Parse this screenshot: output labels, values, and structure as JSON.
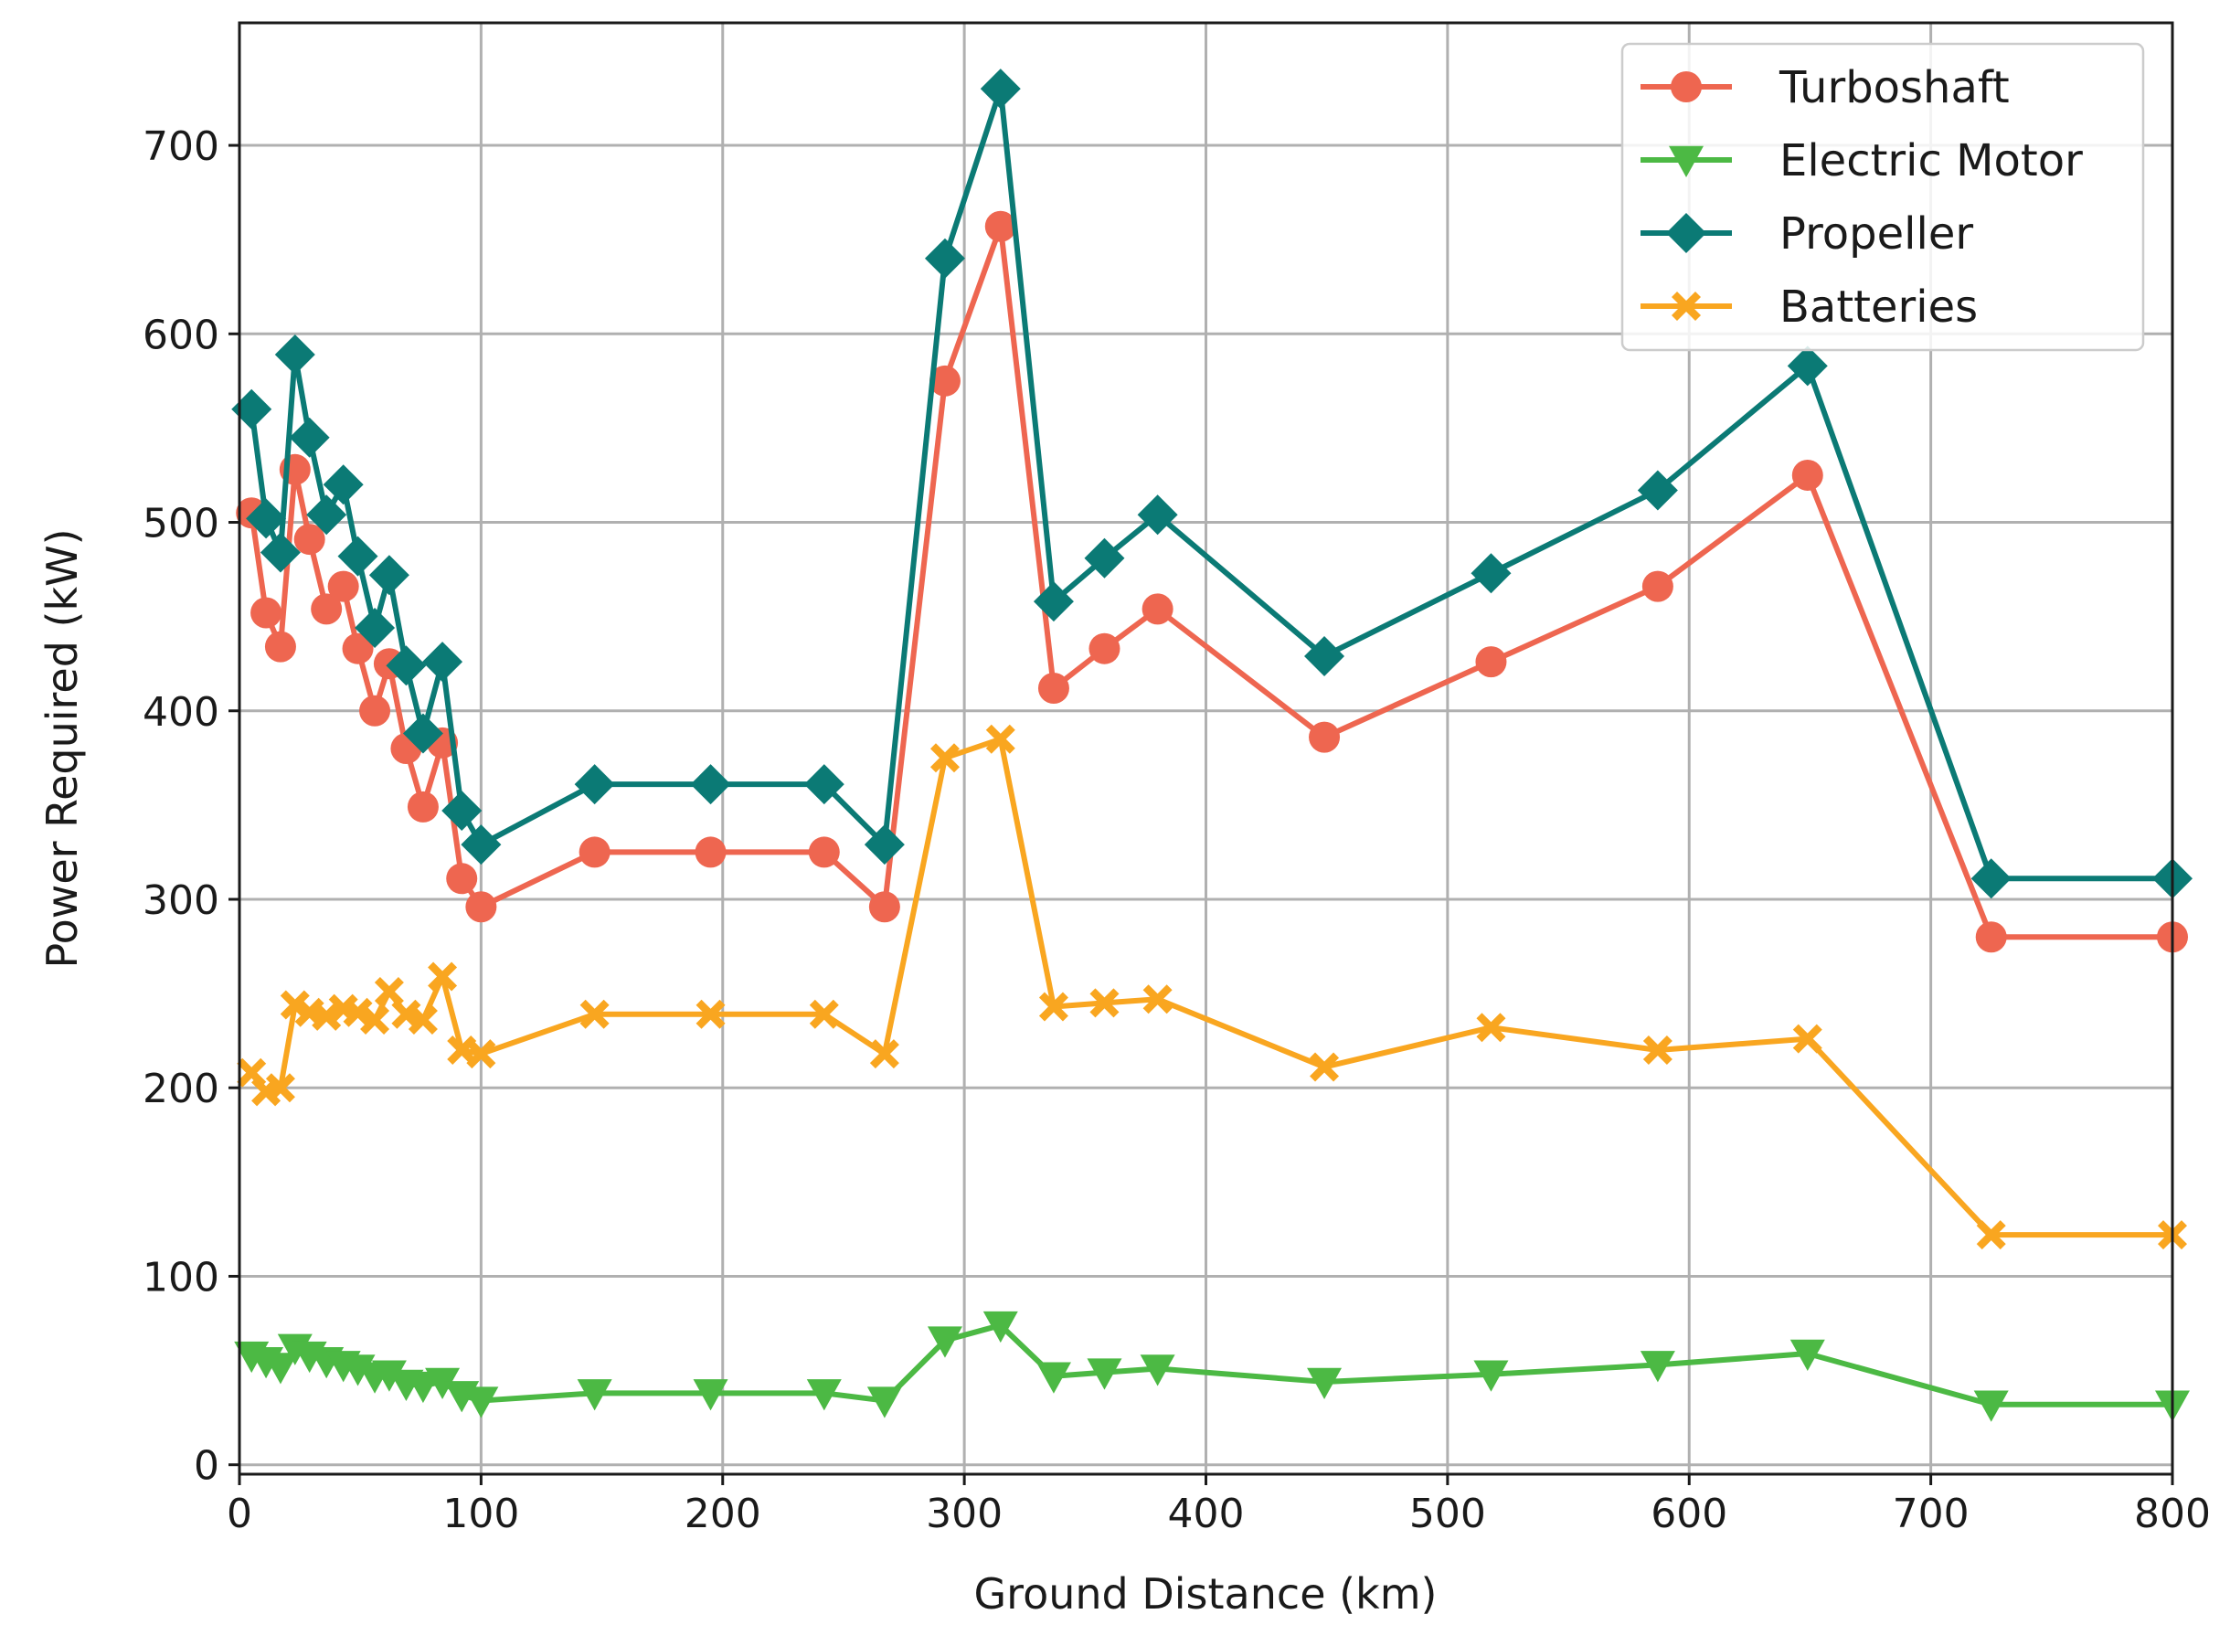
{
  "chart_data": {
    "type": "line",
    "title": "",
    "xlabel": "Ground Distance (km)",
    "ylabel": "Power Required (kW)",
    "xlim": [
      0,
      800
    ],
    "ylim": [
      -5,
      765
    ],
    "xticks": [
      0,
      100,
      200,
      300,
      400,
      500,
      600,
      700,
      800
    ],
    "yticks": [
      0,
      100,
      200,
      300,
      400,
      500,
      600,
      700
    ],
    "grid": true,
    "legend_position": "top-right",
    "series": [
      {
        "name": "Turboshaft",
        "color": "#EE6650",
        "marker": "circle",
        "points": [
          [
            5,
            505
          ],
          [
            11,
            452
          ],
          [
            17,
            434
          ],
          [
            23,
            528
          ],
          [
            29,
            491
          ],
          [
            36,
            454
          ],
          [
            43,
            466
          ],
          [
            49,
            433
          ],
          [
            56,
            400
          ],
          [
            62,
            425
          ],
          [
            69,
            380
          ],
          [
            76,
            349
          ],
          [
            84,
            383
          ],
          [
            92,
            311
          ],
          [
            100,
            296
          ],
          [
            147,
            325
          ],
          [
            195,
            325
          ],
          [
            242,
            325
          ],
          [
            267,
            296
          ],
          [
            292,
            575
          ],
          [
            315,
            657
          ],
          [
            337,
            412
          ],
          [
            358,
            433
          ],
          [
            380,
            454
          ],
          [
            449,
            386
          ],
          [
            518,
            426
          ],
          [
            587,
            466
          ],
          [
            649,
            525
          ],
          [
            725,
            280
          ],
          [
            800,
            280
          ]
        ]
      },
      {
        "name": "Electric Motor",
        "color": "#4CB944",
        "marker": "triangle-down",
        "points": [
          [
            5,
            58
          ],
          [
            11,
            55
          ],
          [
            17,
            52
          ],
          [
            23,
            62
          ],
          [
            29,
            58
          ],
          [
            36,
            55
          ],
          [
            43,
            53
          ],
          [
            49,
            51
          ],
          [
            56,
            47
          ],
          [
            62,
            48
          ],
          [
            69,
            43
          ],
          [
            76,
            42
          ],
          [
            84,
            44
          ],
          [
            92,
            37
          ],
          [
            100,
            34
          ],
          [
            147,
            38
          ],
          [
            195,
            38
          ],
          [
            242,
            38
          ],
          [
            267,
            34
          ],
          [
            292,
            66
          ],
          [
            315,
            74
          ],
          [
            337,
            47
          ],
          [
            358,
            49
          ],
          [
            380,
            51
          ],
          [
            449,
            44
          ],
          [
            518,
            48
          ],
          [
            587,
            53
          ],
          [
            649,
            59
          ],
          [
            725,
            32
          ],
          [
            800,
            32
          ]
        ]
      },
      {
        "name": "Propeller",
        "color": "#0B7A75",
        "marker": "diamond",
        "points": [
          [
            5,
            560
          ],
          [
            11,
            502
          ],
          [
            17,
            484
          ],
          [
            23,
            589
          ],
          [
            29,
            545
          ],
          [
            36,
            504
          ],
          [
            43,
            520
          ],
          [
            49,
            482
          ],
          [
            56,
            444
          ],
          [
            62,
            472
          ],
          [
            69,
            424
          ],
          [
            76,
            388
          ],
          [
            84,
            426
          ],
          [
            92,
            347
          ],
          [
            100,
            329
          ],
          [
            147,
            361
          ],
          [
            195,
            361
          ],
          [
            242,
            361
          ],
          [
            267,
            329
          ],
          [
            292,
            640
          ],
          [
            315,
            730
          ],
          [
            337,
            458
          ],
          [
            358,
            481
          ],
          [
            380,
            504
          ],
          [
            449,
            429
          ],
          [
            518,
            473
          ],
          [
            587,
            517
          ],
          [
            649,
            583
          ],
          [
            725,
            311
          ],
          [
            800,
            311
          ]
        ]
      },
      {
        "name": "Batteries",
        "color": "#F9A620",
        "marker": "x-filled",
        "points": [
          [
            5,
            208
          ],
          [
            11,
            198
          ],
          [
            17,
            200
          ],
          [
            23,
            244
          ],
          [
            29,
            240
          ],
          [
            36,
            238
          ],
          [
            43,
            242
          ],
          [
            49,
            240
          ],
          [
            56,
            236
          ],
          [
            62,
            251
          ],
          [
            69,
            239
          ],
          [
            76,
            236
          ],
          [
            84,
            259
          ],
          [
            92,
            220
          ],
          [
            100,
            218
          ],
          [
            147,
            239
          ],
          [
            195,
            239
          ],
          [
            242,
            239
          ],
          [
            267,
            218
          ],
          [
            292,
            375
          ],
          [
            315,
            385
          ],
          [
            337,
            243
          ],
          [
            358,
            245
          ],
          [
            380,
            247
          ],
          [
            449,
            211
          ],
          [
            518,
            232
          ],
          [
            587,
            220
          ],
          [
            649,
            226
          ],
          [
            725,
            122
          ],
          [
            800,
            122
          ]
        ]
      }
    ]
  }
}
